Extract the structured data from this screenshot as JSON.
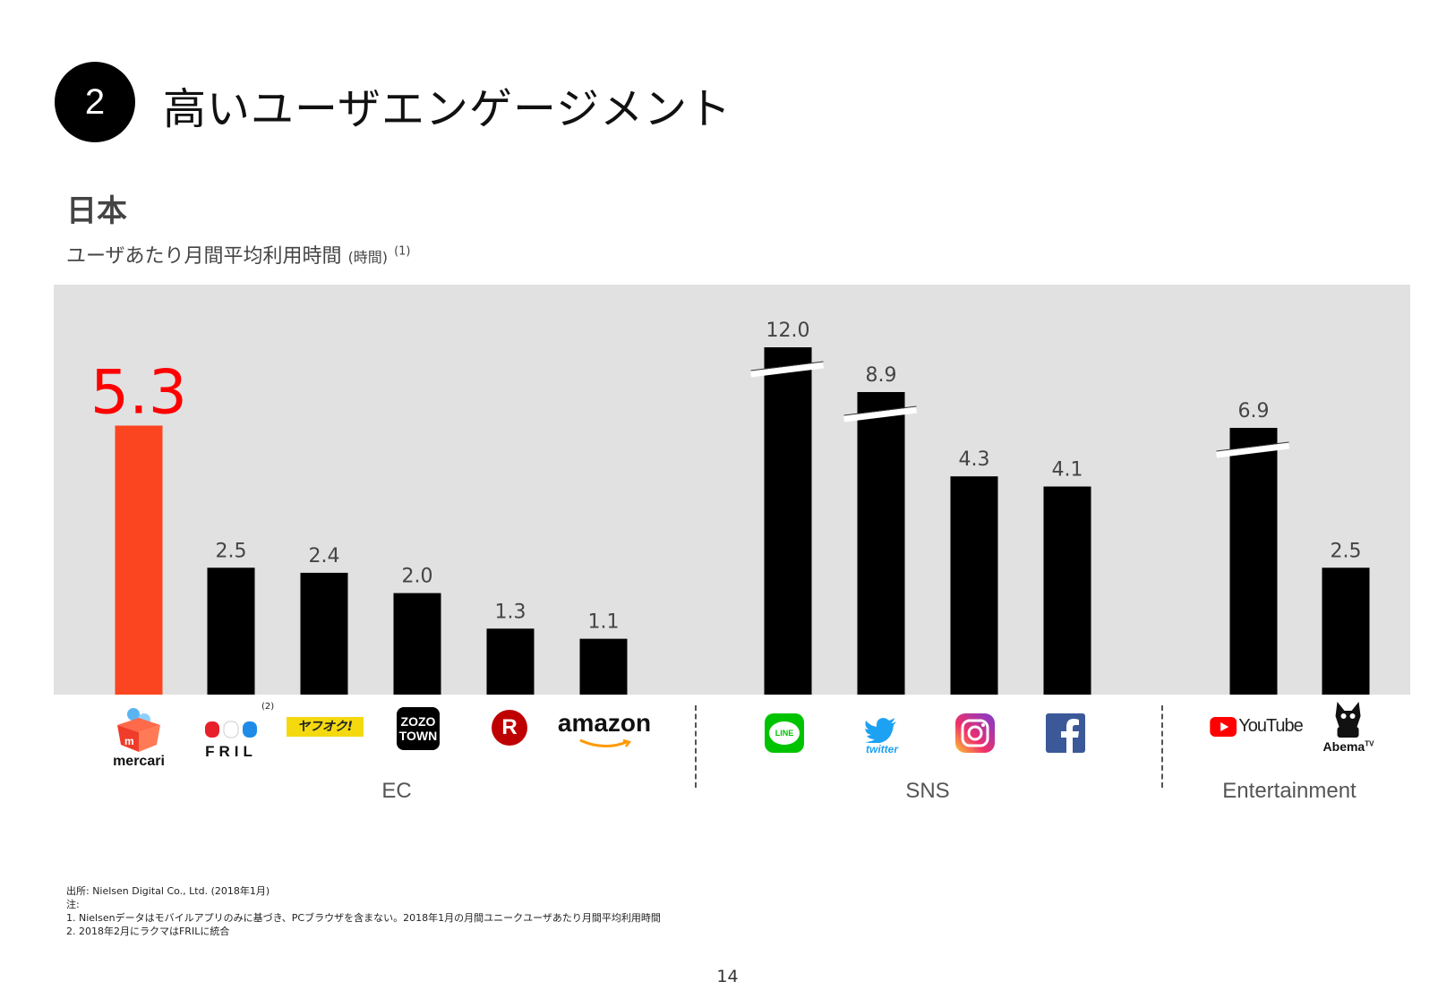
{
  "section_number": "2",
  "page_title": "高いユーザエンゲージメント",
  "region": "日本",
  "subtitle": "ユーザあたり月間平均利用時間",
  "subtitle_unit": "(時間)",
  "subtitle_note": "(1)",
  "chart_data": {
    "type": "bar",
    "categories": [
      "mercari",
      "FRIL",
      "ヤフオク!",
      "ZOZOTOWN",
      "Rakuten",
      "amazon",
      "LINE",
      "twitter",
      "Instagram",
      "Facebook",
      "YouTube",
      "AbemaTV"
    ],
    "values": [
      5.3,
      2.5,
      2.4,
      2.0,
      1.3,
      1.1,
      12.0,
      8.9,
      4.3,
      4.1,
      6.9,
      2.5
    ],
    "value_labels": [
      "5.3",
      "2.5",
      "2.4",
      "2.0",
      "1.3",
      "1.1",
      "12.0",
      "8.9",
      "4.3",
      "4.1",
      "6.9",
      "2.5"
    ],
    "groups": [
      {
        "label": "EC",
        "members": [
          "mercari",
          "FRIL",
          "ヤフオク!",
          "ZOZOTOWN",
          "Rakuten",
          "amazon"
        ]
      },
      {
        "label": "SNS",
        "members": [
          "LINE",
          "twitter",
          "Instagram",
          "Facebook"
        ]
      },
      {
        "label": "Entertainment",
        "members": [
          "YouTube",
          "AbemaTV"
        ]
      }
    ],
    "axis_breaks": [
      "LINE",
      "twitter",
      "YouTube"
    ],
    "highlight": "mercari",
    "colors": {
      "highlight_bar": "#fb4521",
      "highlight_label": "#ff0000",
      "bar": "#000000",
      "background": "#e1e1e1"
    }
  },
  "logos": {
    "mercari": "mercari",
    "fril": "FRIL",
    "fril_note": "(2)",
    "yahuoku": "ヤフオク!",
    "zozo_1": "ZOZO",
    "zozo_2": "TOWN",
    "rakuten": "R",
    "amazon": "amazon",
    "line": "LINE",
    "twitter": "twitter",
    "youtube": "YouTube",
    "abema": "Abema",
    "abema_tv": "TV"
  },
  "footnotes": [
    "出所: Nielsen Digital Co., Ltd. (2018年1月)",
    "注:",
    "1.  Nielsenデータはモバイルアプリのみに基づき、PCブラウザを含まない。2018年1月の月間ユニークユーザあたり月間平均利用時間",
    "2.  2018年2月にラクマはFRILに統合"
  ],
  "page_number": "14"
}
